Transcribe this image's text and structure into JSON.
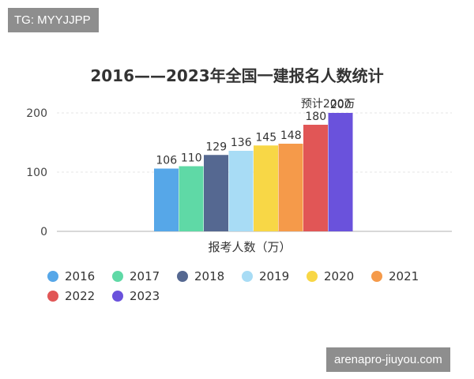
{
  "watermark_top": "TG: MYYJJPP",
  "watermark_bottom": "arenapro-jiuyou.com",
  "chart_data": {
    "type": "bar",
    "title": "2016——2023年全国一建报名人数统计",
    "xlabel": "报考人数（万）",
    "ylabel": "",
    "ylim": [
      0,
      200
    ],
    "yticks": [
      0,
      100,
      200
    ],
    "grid": true,
    "legend_position": "bottom",
    "annotation": "预计200万",
    "series": [
      {
        "name": "2016",
        "value": 106,
        "color": "#56a7e8"
      },
      {
        "name": "2017",
        "value": 110,
        "color": "#5fd9a6"
      },
      {
        "name": "2018",
        "value": 129,
        "color": "#556891"
      },
      {
        "name": "2019",
        "value": 136,
        "color": "#a8dcf5"
      },
      {
        "name": "2020",
        "value": 145,
        "color": "#f8d746"
      },
      {
        "name": "2021",
        "value": 148,
        "color": "#f59a4a"
      },
      {
        "name": "2022",
        "value": 180,
        "color": "#e15656"
      },
      {
        "name": "2023",
        "value": 200,
        "color": "#6a52dc"
      }
    ]
  }
}
